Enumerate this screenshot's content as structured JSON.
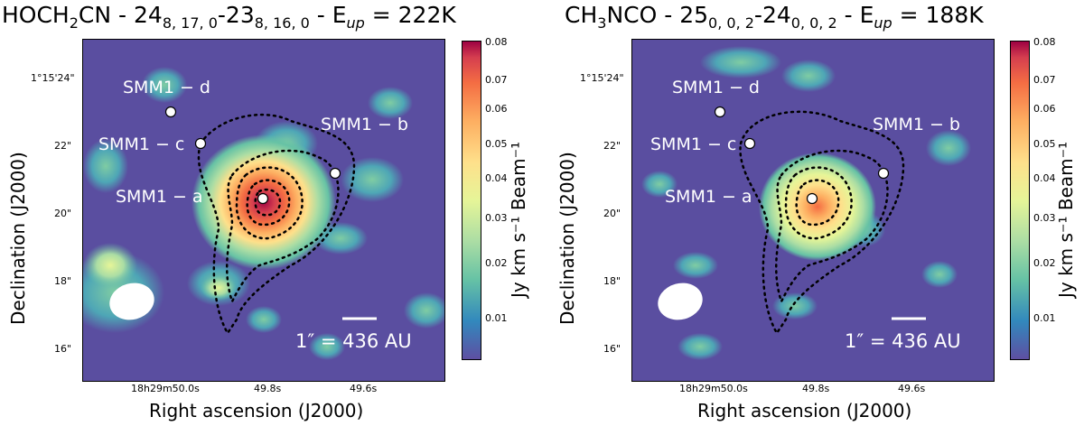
{
  "panels": [
    {
      "title": {
        "mol_pre": "HOCH",
        "mol_sub": "2",
        "mol_post": "CN",
        "sep": " - ",
        "t1_main": "24",
        "t1_sub": "8, 17, 0",
        "dash": "-",
        "t2_main": "23",
        "t2_sub": "8, 16, 0",
        "eup_pre": " - E",
        "eup_sub": "up",
        "eup_value": " = 222K"
      },
      "ylabel": "Declination (J2000)",
      "xlabel": "Right ascension (J2000)",
      "yticks": [
        "1°15'24\"",
        "22\"",
        "20\"",
        "18\"",
        "16\""
      ],
      "xticks": [
        "18h29m50.0s",
        "49.8s",
        "49.6s"
      ],
      "cbar_ticks": [
        "0.08",
        "0.07",
        "0.06",
        "0.05",
        "0.04",
        "0.03",
        "0.02",
        "0.01"
      ],
      "cbar_label": "Jy km s⁻¹ Beam⁻¹",
      "sources": [
        "SMM1 − d",
        "SMM1 − c",
        "SMM1 − b",
        "SMM1 − a"
      ],
      "scale_label": "1″ = 436 AU"
    },
    {
      "title": {
        "mol_pre": "CH",
        "mol_sub": "3",
        "mol_post": "NCO",
        "sep": " - ",
        "t1_main": "25",
        "t1_sub": "0, 0, 2",
        "dash": "-",
        "t2_main": "24",
        "t2_sub": "0, 0, 2",
        "eup_pre": " - E",
        "eup_sub": "up",
        "eup_value": " = 188K"
      },
      "ylabel": "Declination (J2000)",
      "xlabel": "Right ascension (J2000)",
      "yticks": [
        "1°15'24\"",
        "22\"",
        "20\"",
        "18\"",
        "16\""
      ],
      "xticks": [
        "18h29m50.0s",
        "49.8s",
        "49.6s"
      ],
      "cbar_ticks": [
        "0.08",
        "0.07",
        "0.06",
        "0.05",
        "0.04",
        "0.03",
        "0.02",
        "0.01"
      ],
      "cbar_label": "Jy km s⁻¹ Beam⁻¹",
      "sources": [
        "SMM1 − d",
        "SMM1 − c",
        "SMM1 − b",
        "SMM1 − a"
      ],
      "scale_label": "1″ = 436 AU"
    }
  ],
  "chart_data": [
    {
      "type": "heatmap",
      "colormap": "Spectral_r",
      "colorbar_range": [
        0.0,
        0.08
      ],
      "peak_value": 0.08,
      "peak_position": {
        "ra": "18h29m49.8s",
        "dec": "1°15'20.4\""
      },
      "sources": [
        {
          "name": "SMM1 − a",
          "ra": "18h29m49.80s",
          "dec": "1°15'20.4\""
        },
        {
          "name": "SMM1 − b",
          "ra": "18h29m49.67s",
          "dec": "1°15'21.2\""
        },
        {
          "name": "SMM1 − c",
          "ra": "18h29m49.94s",
          "dec": "1°15'22.0\""
        },
        {
          "name": "SMM1 − d",
          "ra": "18h29m49.97s",
          "dec": "1°15'22.9\""
        }
      ],
      "xlabel": "Right ascension (J2000)",
      "ylabel": "Declination (J2000)",
      "colorbar_label": "Jy km s⁻¹ Beam⁻¹",
      "contours": "dotted black"
    },
    {
      "type": "heatmap",
      "colormap": "Spectral_r",
      "colorbar_range": [
        0.0,
        0.08
      ],
      "peak_value": 0.05,
      "peak_position": {
        "ra": "18h29m49.8s",
        "dec": "1°15'20.3\""
      },
      "sources": [
        {
          "name": "SMM1 − a",
          "ra": "18h29m49.80s",
          "dec": "1°15'20.4\""
        },
        {
          "name": "SMM1 − b",
          "ra": "18h29m49.67s",
          "dec": "1°15'21.2\""
        },
        {
          "name": "SMM1 − c",
          "ra": "18h29m49.94s",
          "dec": "1°15'22.0\""
        },
        {
          "name": "SMM1 − d",
          "ra": "18h29m49.97s",
          "dec": "1°15'22.9\""
        }
      ],
      "xlabel": "Right ascension (J2000)",
      "ylabel": "Declination (J2000)",
      "colorbar_label": "Jy km s⁻¹ Beam⁻¹",
      "contours": "dotted black"
    }
  ]
}
